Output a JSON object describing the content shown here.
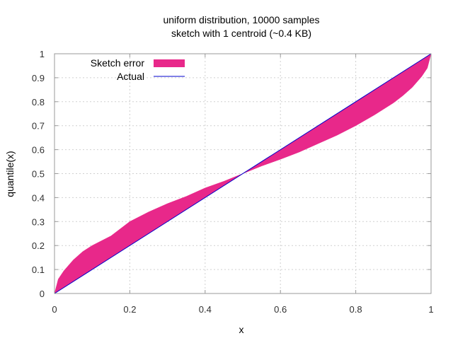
{
  "chart_data": {
    "type": "area",
    "title_line1": "uniform distribution, 10000 samples",
    "title_line2": "sketch with 1 centroid (~0.4 KB)",
    "xlabel": "x",
    "ylabel": "quantile(x)",
    "xlim": [
      0,
      1
    ],
    "ylim": [
      0,
      1
    ],
    "x_ticks": [
      0,
      0.2,
      0.4,
      0.6,
      0.8,
      1
    ],
    "x_tick_labels": [
      "0",
      "0.2",
      "0.4",
      "0.6",
      "0.8",
      "1"
    ],
    "y_ticks": [
      0,
      0.1,
      0.2,
      0.3,
      0.4,
      0.5,
      0.6,
      0.7,
      0.8,
      0.9,
      1
    ],
    "y_tick_labels": [
      "0",
      "0.1",
      "0.2",
      "0.3",
      "0.4",
      "0.5",
      "0.6",
      "0.7",
      "0.8",
      "0.9",
      "1"
    ],
    "grid": true,
    "legend_position": "top-left",
    "series": [
      {
        "name": "Sketch error",
        "kind": "band",
        "color": "#e8288a",
        "x": [
          0,
          0.01,
          0.025,
          0.05,
          0.075,
          0.1,
          0.15,
          0.2,
          0.25,
          0.3,
          0.35,
          0.4,
          0.45,
          0.5,
          0.55,
          0.6,
          0.65,
          0.7,
          0.75,
          0.8,
          0.85,
          0.9,
          0.925,
          0.95,
          0.975,
          0.99,
          1
        ],
        "lower": [
          0,
          0.01,
          0.025,
          0.05,
          0.075,
          0.1,
          0.15,
          0.2,
          0.25,
          0.3,
          0.35,
          0.4,
          0.45,
          0.5,
          0.532,
          0.56,
          0.59,
          0.625,
          0.66,
          0.7,
          0.745,
          0.795,
          0.825,
          0.86,
          0.905,
          0.94,
          1
        ],
        "upper": [
          0,
          0.06,
          0.095,
          0.14,
          0.175,
          0.2,
          0.24,
          0.3,
          0.34,
          0.375,
          0.405,
          0.44,
          0.468,
          0.5,
          0.55,
          0.6,
          0.65,
          0.7,
          0.75,
          0.8,
          0.85,
          0.9,
          0.925,
          0.95,
          0.975,
          0.99,
          1
        ]
      },
      {
        "name": "Actual",
        "kind": "line",
        "color": "#0000cc",
        "x": [
          0,
          1
        ],
        "y": [
          0,
          1
        ]
      }
    ]
  }
}
